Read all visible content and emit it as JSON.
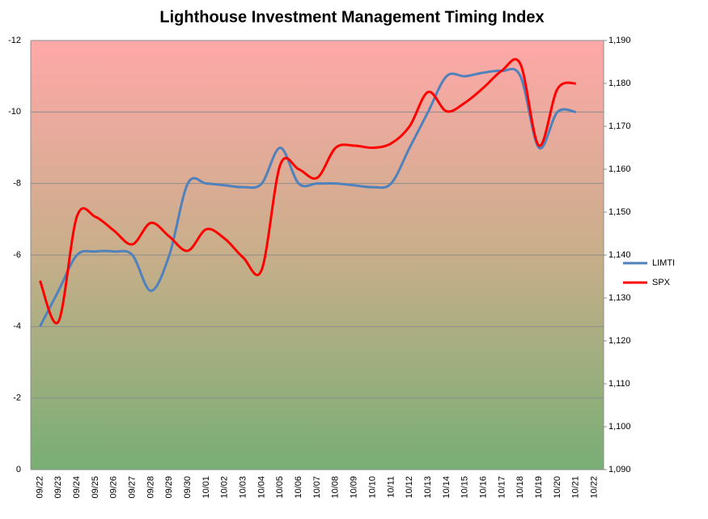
{
  "chart_data": {
    "type": "line",
    "title": "Lighthouse Investment Management Timing Index",
    "categories": [
      "09/22",
      "09/23",
      "09/24",
      "09/25",
      "09/26",
      "09/27",
      "09/28",
      "09/29",
      "09/30",
      "10/01",
      "10/02",
      "10/03",
      "10/04",
      "10/05",
      "10/06",
      "10/07",
      "10/08",
      "10/09",
      "10/10",
      "10/11",
      "10/12",
      "10/13",
      "10/14",
      "10/15",
      "10/16",
      "10/17",
      "10/18",
      "10/19",
      "10/20",
      "10/21",
      "10/22"
    ],
    "series": [
      {
        "name": "LIMTI",
        "color": "#4f81bd",
        "values": [
          -4,
          -5,
          -6,
          -6.1,
          -6.1,
          -6,
          -5,
          -6,
          -8,
          -8,
          -7.95,
          -7.9,
          -8,
          -9,
          -8,
          -8,
          -8,
          -7.95,
          -7.9,
          -8,
          -9,
          -10,
          -11,
          -11,
          -11.1,
          -11.15,
          -11,
          -9,
          -10,
          -10,
          null
        ]
      },
      {
        "name": "SPX",
        "color": "#ff0000",
        "axis": "y2",
        "values": [
          1134,
          1124.5,
          1149,
          1148.9,
          1145.7,
          1142.5,
          1147.5,
          1144.3,
          1141,
          1146,
          1143.8,
          1139.4,
          1136.6,
          1161,
          1160,
          1158,
          1165,
          1165.5,
          1165,
          1166,
          1170,
          1178,
          1173.5,
          1175.5,
          1179,
          1183,
          1184.5,
          1165.5,
          1178.7,
          1180,
          null
        ]
      }
    ],
    "ylim": [
      0,
      -12
    ],
    "yticks": [
      0,
      -2,
      -4,
      -6,
      -8,
      -10,
      -12
    ],
    "y2lim": [
      1090,
      1190
    ],
    "y2ticks": [
      {
        "value": 1090,
        "label": "1,090"
      },
      {
        "value": 1100,
        "label": "1,100"
      },
      {
        "value": 1110,
        "label": "1,110"
      },
      {
        "value": 1120,
        "label": "1,120"
      },
      {
        "value": 1130,
        "label": "1,130"
      },
      {
        "value": 1140,
        "label": "1,140"
      },
      {
        "value": 1150,
        "label": "1,150"
      },
      {
        "value": 1160,
        "label": "1,160"
      },
      {
        "value": 1170,
        "label": "1,170"
      },
      {
        "value": 1180,
        "label": "1,180"
      },
      {
        "value": 1190,
        "label": "1,190"
      }
    ],
    "grid": true,
    "legend": "right"
  }
}
